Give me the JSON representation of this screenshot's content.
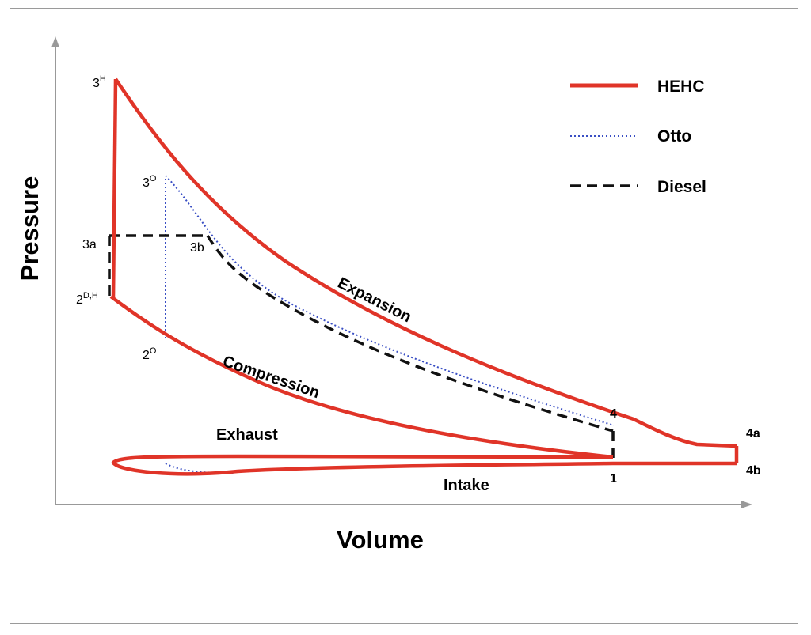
{
  "axes": {
    "x_label": "Volume",
    "y_label": "Pressure"
  },
  "legend": [
    {
      "name": "HEHC",
      "color": "#e03428",
      "style": "solid"
    },
    {
      "name": "Otto",
      "color": "#3a4fc4",
      "style": "dotted"
    },
    {
      "name": "Diesel",
      "color": "#111111",
      "style": "dashed"
    }
  ],
  "stage_labels": {
    "expansion": "Expansion",
    "compression": "Compression",
    "exhaust": "Exhaust",
    "intake": "Intake"
  },
  "point_labels": {
    "p3H_main": "3",
    "p3H_sup": "H",
    "p3O_main": "3",
    "p3O_sup": "O",
    "p3a": "3a",
    "p3b": "3b",
    "p2DH_main": "2",
    "p2DH_sup": "D,H",
    "p2O_main": "2",
    "p2O_sup": "O",
    "p4": "4",
    "p4a": "4a",
    "p4b": "4b",
    "p1": "1"
  }
}
